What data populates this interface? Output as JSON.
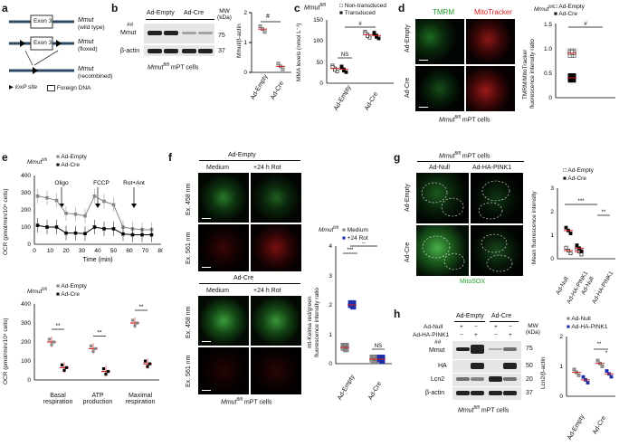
{
  "panels": {
    "a": {
      "label": "a",
      "rows": [
        {
          "gene": "Mmut",
          "state": "(wild type)"
        },
        {
          "gene": "Mmut",
          "state": "(floxed)"
        },
        {
          "gene": "Mmut",
          "state": "(recombined)"
        }
      ],
      "exon": "Exon 3",
      "legend_loxp": "loxP site",
      "legend_foreign": "Foreign DNA"
    },
    "b": {
      "label": "b",
      "conditions": [
        "Ad-Empty",
        "Ad-Cre"
      ],
      "mw_header": "MW (kDa)",
      "blot_rows": [
        "##",
        "Mmut",
        "β-actin"
      ],
      "mw": [
        "75",
        "37"
      ],
      "caption_gene": "Mmut",
      "caption_sup": "fl/fl",
      "caption_rest": " mPT cells",
      "sig": "#",
      "ytitle": "Mmut/β-actin",
      "yticks": [
        "0",
        "1",
        "2"
      ]
    },
    "c": {
      "label": "c",
      "gene": "Mmut",
      "sup": "fl/fl",
      "legend": [
        "Non-transduced",
        "Transduced"
      ],
      "ytitle": "MMA levels (nmol L⁻¹)",
      "yticks": [
        "0",
        "50",
        "100",
        "150"
      ],
      "xcats": [
        "Ad-Empty",
        "Ad-Cre"
      ],
      "sig_ns": "NS",
      "sig_hash": "#"
    },
    "d": {
      "label": "d",
      "cols": [
        "TMRM",
        "MitoTracker"
      ],
      "rows": [
        "Ad-Empty",
        "Ad-Cre"
      ],
      "gene": "Mmut",
      "sup": "fl/fl",
      "legend": [
        "Ad-Empty",
        "Ad-Cre"
      ],
      "ytitle1": "TMRM/MitoTracker",
      "ytitle2": "fluorescence intensity ratio",
      "yticks": [
        "0",
        "0.5",
        "1.0",
        "1.5"
      ],
      "sig": "#",
      "caption_rest": " mPT cells"
    },
    "e": {
      "label": "e",
      "gene": "Mmut",
      "sup": "fl/fl",
      "legend": [
        "Ad-Empty",
        "Ad-Cre"
      ],
      "injections": [
        "Oligo",
        "FCCP",
        "Rot+Ant"
      ],
      "ytitle_top": "OCR (pmol/min/10⁴ cells)",
      "yticks_top": [
        "0",
        "100",
        "200",
        "300",
        "400"
      ],
      "xticks_top": [
        "0",
        "10",
        "20",
        "30",
        "40",
        "50",
        "60",
        "70",
        "80"
      ],
      "xlabel_top": "Time (min)",
      "ytitle_bot": "OCR (pmol/min/10⁴ cells)",
      "yticks_bot": [
        "0",
        "100",
        "200",
        "300",
        "400"
      ],
      "xcats_bot": [
        "Basal respiration",
        "ATP production",
        "Maximal respiration"
      ],
      "sig": "**"
    },
    "f": {
      "label": "f",
      "groups": [
        "Ad-Empty",
        "Ad-Cre"
      ],
      "cols": [
        "Medium",
        "+24 h Rot"
      ],
      "rows": [
        "Ex. 458 nm",
        "Ex. 561 nm"
      ],
      "gene": "Mmut",
      "sup": "fl/fl",
      "caption_rest": " mPT cells",
      "legend": [
        "Medium",
        "+24 Rot"
      ],
      "ytitle1": "mt-Keima red/green",
      "ytitle2": "fluorescence intensity ratio",
      "yticks": [
        "0",
        "1",
        "2",
        "3",
        "4"
      ],
      "xcats": [
        "Ad-Empty",
        "Ad-Cre"
      ],
      "sig": [
        "***",
        "**",
        "NS"
      ]
    },
    "g": {
      "label": "g",
      "title_gene": "Mmut",
      "title_sup": "fl/fl",
      "title_rest": " mPT cells",
      "cols": [
        "Ad-Null",
        "Ad-HA-PINK1"
      ],
      "rows": [
        "Ad-Empty",
        "Ad-Cre"
      ],
      "stain": "MitoSOX",
      "legend": [
        "Ad-Empty",
        "Ad-Cre"
      ],
      "ytitle": "Mean fluorescence intensity",
      "yticks": [
        "0",
        "1",
        "2",
        "3"
      ],
      "xcats": [
        "Ad-Null",
        "Ad-HA-PINK1",
        "Ad-Null",
        "Ad-HA-PINK1"
      ],
      "sig": [
        "***",
        "**"
      ]
    },
    "h": {
      "label": "h",
      "conditions": [
        "Ad-Empty",
        "Ad-Cre"
      ],
      "treat_rows": [
        {
          "name": "Ad-Null",
          "marks": [
            "+",
            "−",
            "+",
            "−"
          ]
        },
        {
          "name": "Ad-HA-PINK1",
          "marks": [
            "−",
            "+",
            "−",
            "+"
          ]
        }
      ],
      "mw_header": "MW (kDa)",
      "blot_rows": [
        "##",
        "Mmut",
        "HA",
        "Lcn2",
        "β-actin"
      ],
      "mw": [
        "75",
        "50",
        "20",
        "37"
      ],
      "caption_gene": "Mmut",
      "caption_sup": "fl/fl",
      "caption_rest": " mPT cells",
      "legend": [
        "Ad-Null",
        "Ad-HA-PINK1"
      ],
      "ytitle": "Lcn2/β-actin",
      "yticks": [
        "0",
        "1",
        "2"
      ],
      "xcats": [
        "Ad-Empty",
        "Ad-Cre"
      ],
      "sig": [
        "**",
        "*"
      ]
    }
  },
  "chart_data": [
    {
      "type": "scatter",
      "panel": "b",
      "categories": [
        "Ad-Empty",
        "Ad-Cre"
      ],
      "series": [
        {
          "name": "",
          "values": [
            1.45,
            0.2
          ]
        }
      ],
      "ylabel": "Mmut/β-actin",
      "ylim": [
        0,
        2
      ]
    },
    {
      "type": "scatter",
      "panel": "c",
      "categories": [
        "Ad-Empty",
        "Ad-Cre"
      ],
      "series": [
        {
          "name": "Non-transduced",
          "values": [
            35,
            115
          ]
        },
        {
          "name": "Transduced",
          "values": [
            33,
            113
          ]
        }
      ],
      "ylabel": "MMA levels (nmol L⁻¹)",
      "ylim": [
        0,
        150
      ]
    },
    {
      "type": "scatter",
      "panel": "d",
      "categories": [
        "Ad-Empty",
        "Ad-Cre"
      ],
      "series": [
        {
          "name": "Ad-Empty",
          "values": [
            0.9
          ]
        },
        {
          "name": "Ad-Cre",
          "values": [
            0.4
          ]
        }
      ],
      "ylabel": "TMRM/MitoTracker fluorescence intensity ratio",
      "ylim": [
        0,
        1.5
      ]
    },
    {
      "type": "line",
      "panel": "e-top",
      "x": [
        2,
        8,
        14,
        20,
        26,
        32,
        38,
        44,
        50,
        56,
        62,
        68,
        74
      ],
      "series": [
        {
          "name": "Ad-Empty",
          "values": [
            280,
            270,
            255,
            180,
            175,
            165,
            280,
            250,
            230,
            100,
            90,
            85,
            85
          ]
        },
        {
          "name": "Ad-Cre",
          "values": [
            110,
            100,
            100,
            65,
            65,
            62,
            100,
            90,
            90,
            60,
            55,
            55,
            55
          ]
        }
      ],
      "xlabel": "Time (min)",
      "ylabel": "OCR (pmol/min/10⁴ cells)",
      "xlim": [
        0,
        80
      ],
      "ylim": [
        0,
        400
      ]
    },
    {
      "type": "bar",
      "panel": "e-bottom",
      "categories": [
        "Basal respiration",
        "ATP production",
        "Maximal respiration"
      ],
      "series": [
        {
          "name": "Ad-Empty",
          "values": [
            200,
            165,
            300
          ]
        },
        {
          "name": "Ad-Cre",
          "values": [
            65,
            45,
            85
          ]
        }
      ],
      "ylabel": "OCR (pmol/min/10⁴ cells)",
      "ylim": [
        0,
        400
      ]
    },
    {
      "type": "scatter",
      "panel": "f",
      "categories": [
        "Ad-Empty",
        "Ad-Cre"
      ],
      "series": [
        {
          "name": "Medium",
          "values": [
            0.55,
            0.15
          ]
        },
        {
          "name": "+24 Rot",
          "values": [
            2.0,
            0.15
          ]
        }
      ],
      "ylabel": "mt-Keima red/green fluorescence intensity ratio",
      "ylim": [
        0,
        4
      ]
    },
    {
      "type": "scatter",
      "panel": "g",
      "categories": [
        "Ad-Null",
        "Ad-HA-PINK1",
        "Ad-Null",
        "Ad-HA-PINK1"
      ],
      "series": [
        {
          "name": "Ad-Empty",
          "values": [
            0.35,
            0.3
          ]
        },
        {
          "name": "Ad-Cre",
          "values": [
            1.2,
            0.45
          ]
        }
      ],
      "ylabel": "Mean fluorescence intensity",
      "ylim": [
        0,
        3
      ]
    },
    {
      "type": "scatter",
      "panel": "h",
      "categories": [
        "Ad-Empty",
        "Ad-Cre"
      ],
      "series": [
        {
          "name": "Ad-Null",
          "values": [
            0.8,
            1.1
          ]
        },
        {
          "name": "Ad-HA-PINK1",
          "values": [
            0.55,
            0.75
          ]
        }
      ],
      "ylabel": "Lcn2/β-actin",
      "ylim": [
        0,
        2
      ]
    }
  ]
}
